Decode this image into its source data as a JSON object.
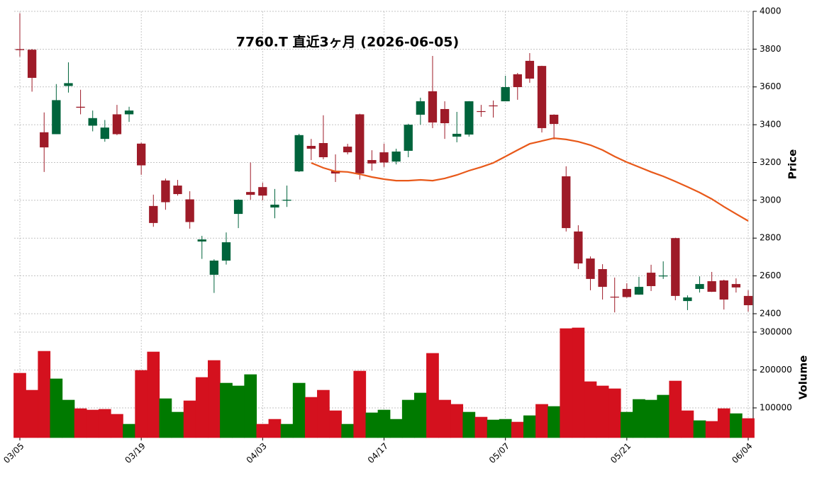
{
  "chart_data": {
    "type": "candlestick",
    "title": "7760.T  直近3ヶ月  (2026-06-05)",
    "categories": [
      "03/05",
      null,
      null,
      null,
      null,
      null,
      null,
      null,
      null,
      null,
      "03/19",
      null,
      null,
      null,
      null,
      null,
      null,
      null,
      null,
      null,
      "04/03",
      null,
      null,
      null,
      null,
      null,
      null,
      null,
      null,
      null,
      "04/17",
      null,
      null,
      null,
      null,
      null,
      null,
      null,
      null,
      null,
      "05/07",
      null,
      null,
      null,
      null,
      null,
      null,
      null,
      null,
      null,
      "05/21",
      null,
      null,
      null,
      null,
      null,
      null,
      null,
      null,
      null,
      "06/04"
    ],
    "open": [
      3800,
      3797,
      3360,
      3350,
      3605,
      3495,
      3395,
      3325,
      3455,
      3455,
      3300,
      2970,
      3105,
      3078,
      3005,
      2782,
      2606,
      2681,
      2928,
      3044,
      3070,
      2962,
      2998,
      3153,
      3288,
      3303,
      3157,
      3284,
      3455,
      3213,
      3254,
      3205,
      3262,
      3453,
      3577,
      3483,
      3337,
      3348,
      3472,
      3502,
      3524,
      3667,
      3738,
      3711,
      3453,
      3127,
      2835,
      2692,
      2636,
      2490,
      2531,
      2501,
      2617,
      2598,
      2800,
      2467,
      2531,
      2572,
      2576,
      2557,
      2494
    ],
    "high": [
      3990,
      3800,
      3465,
      3615,
      3730,
      3585,
      3475,
      3425,
      3505,
      3495,
      3305,
      3030,
      3115,
      3108,
      3048,
      2812,
      2688,
      2830,
      3005,
      3200,
      3093,
      3060,
      3078,
      3352,
      3325,
      3450,
      3243,
      3299,
      3458,
      3265,
      3300,
      3273,
      3405,
      3543,
      3764,
      3524,
      3468,
      3525,
      3505,
      3528,
      3659,
      3674,
      3779,
      3712,
      3455,
      3180,
      2868,
      2703,
      2662,
      2591,
      2561,
      2595,
      2659,
      2677,
      2802,
      2497,
      2598,
      2621,
      2580,
      2587,
      2524
    ],
    "low": [
      3760,
      3575,
      3150,
      3350,
      3570,
      3455,
      3365,
      3310,
      3345,
      3415,
      3135,
      2860,
      2950,
      3025,
      2850,
      2690,
      2510,
      2660,
      2853,
      3003,
      3000,
      2905,
      2965,
      3150,
      3213,
      3217,
      3097,
      3243,
      3110,
      3157,
      3176,
      3190,
      3228,
      3400,
      3382,
      3325,
      3307,
      3337,
      3442,
      3438,
      3524,
      3532,
      3622,
      3359,
      3322,
      2835,
      2636,
      2524,
      2475,
      2407,
      2484,
      2500,
      2520,
      2584,
      2471,
      2419,
      2512,
      2515,
      2422,
      2512,
      2411
    ],
    "close": [
      3795,
      3648,
      3280,
      3530,
      3620,
      3490,
      3435,
      3385,
      3350,
      3475,
      3185,
      2880,
      2990,
      3033,
      2885,
      2793,
      2681,
      2778,
      3003,
      3029,
      3025,
      2977,
      3003,
      3345,
      3273,
      3228,
      3142,
      3254,
      3142,
      3195,
      3200,
      3258,
      3400,
      3524,
      3412,
      3408,
      3352,
      3524,
      3468,
      3499,
      3599,
      3599,
      3644,
      3382,
      3404,
      2853,
      2666,
      2584,
      2542,
      2486,
      2488,
      2542,
      2546,
      2602,
      2494,
      2486,
      2557,
      2516,
      2475,
      2539,
      2445
    ],
    "volume": [
      191600,
      146700,
      249500,
      176700,
      120600,
      98000,
      94400,
      96300,
      83200,
      57000,
      199000,
      247700,
      124300,
      88800,
      118700,
      180400,
      225200,
      165400,
      158000,
      187900,
      57000,
      70000,
      57000,
      165400,
      128000,
      146700,
      92500,
      57000,
      197200,
      87000,
      94400,
      70000,
      120600,
      139300,
      244000,
      120600,
      109400,
      88800,
      75700,
      68200,
      70000,
      62600,
      79500,
      109400,
      103800,
      309300,
      311200,
      169200,
      158000,
      150500,
      88800,
      122400,
      120600,
      133700,
      171000,
      92500,
      66400,
      64500,
      98100,
      84900,
      72000
    ],
    "ma": {
      "color": "#e8591a",
      "values": [
        null,
        null,
        null,
        null,
        null,
        null,
        null,
        null,
        null,
        null,
        null,
        null,
        null,
        null,
        null,
        null,
        null,
        null,
        null,
        null,
        null,
        null,
        null,
        null,
        3198,
        3172,
        3153,
        3150,
        3138,
        3123,
        3112,
        3104,
        3104,
        3108,
        3104,
        3116,
        3134,
        3157,
        3176,
        3198,
        3232,
        3266,
        3299,
        3314,
        3329,
        3322,
        3310,
        3292,
        3266,
        3232,
        3202,
        3176,
        3150,
        3127,
        3100,
        3071,
        3041,
        3007,
        2966,
        2928,
        2891
      ]
    },
    "up_color": "#00643c",
    "down_color": "#9e1b28",
    "volume_up_color": "#007a00",
    "volume_down_color": "#d4111e",
    "ylabel": "Price",
    "ylim": [
      2355,
      4000
    ],
    "yticks": [
      2400,
      2600,
      2800,
      3000,
      3200,
      3400,
      3600,
      3800,
      4000
    ],
    "volume_ylabel": "Volume",
    "volume_ylim": [
      21500,
      316800
    ],
    "volume_yticks": [
      100000,
      200000,
      300000
    ],
    "grid": true
  }
}
